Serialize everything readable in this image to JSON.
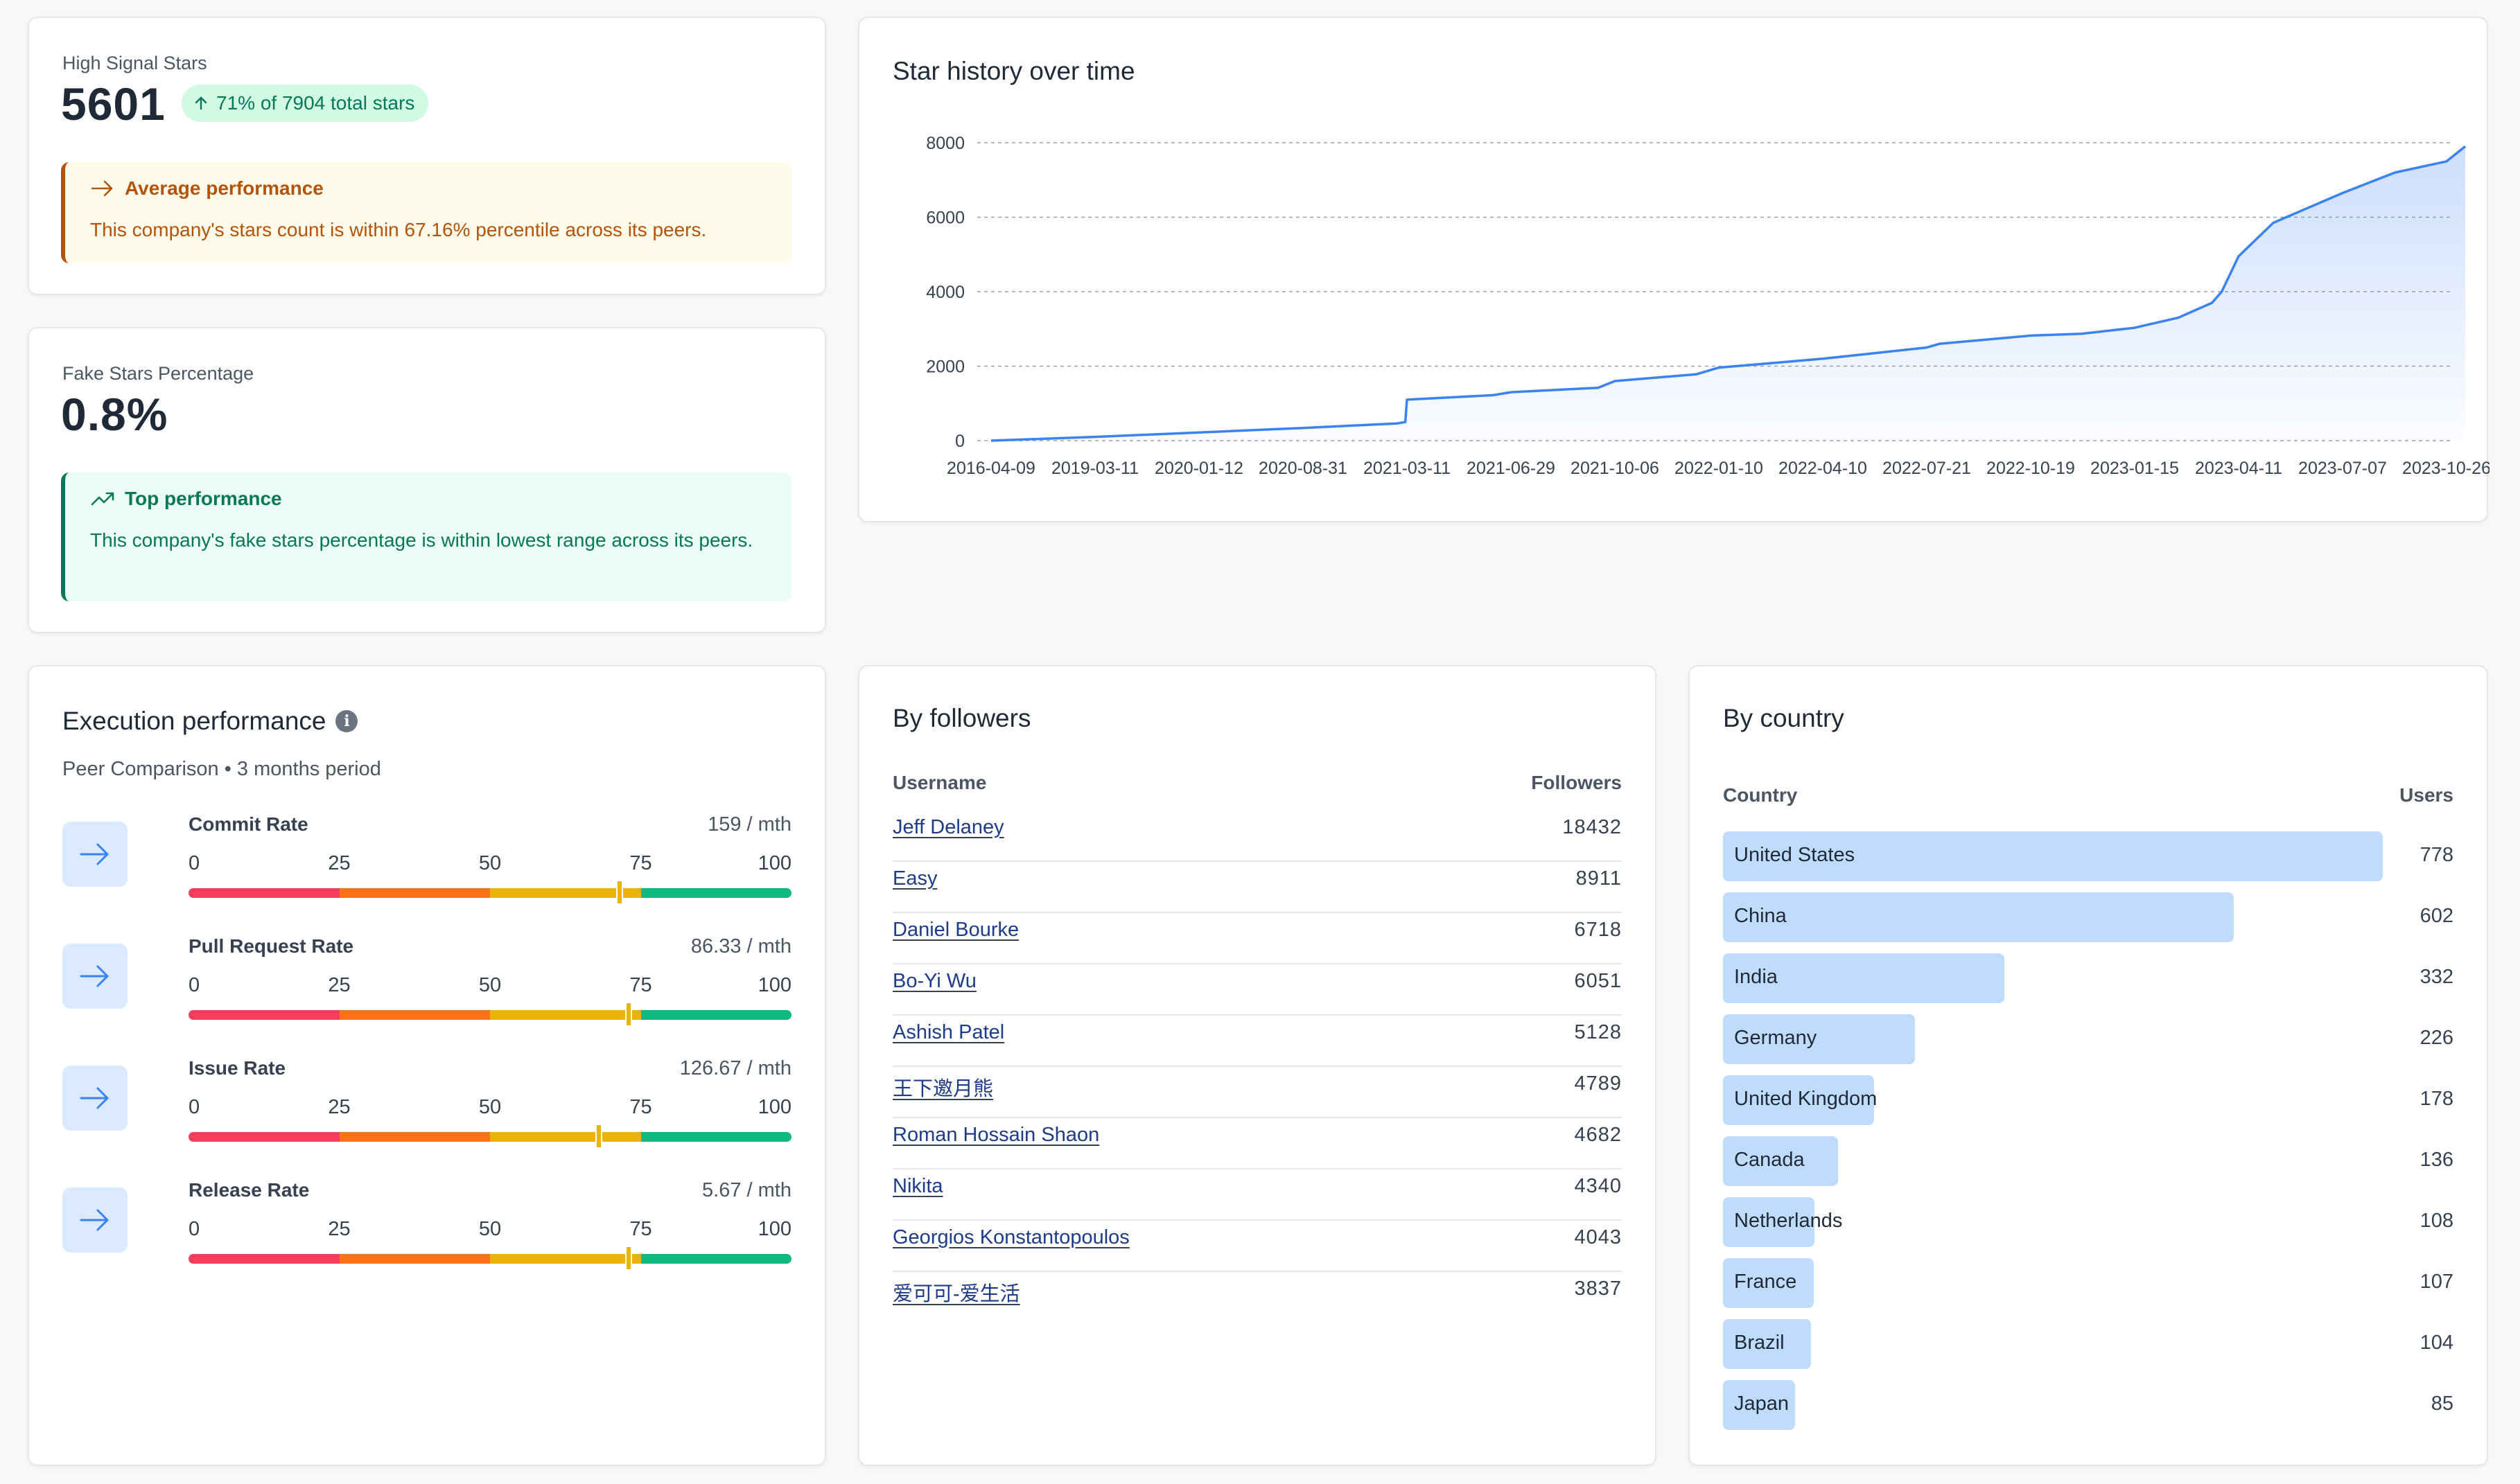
{
  "high_signal": {
    "label": "High Signal Stars",
    "value": "5601",
    "badge": "71% of 7904 total stars",
    "callout_title": "Average performance",
    "callout_text": "This company's stars count is within 67.16% percentile across its peers."
  },
  "fake_stars": {
    "label": "Fake Stars Percentage",
    "value": "0.8%",
    "callout_title": "Top performance",
    "callout_text": "This company's fake stars percentage is within lowest range across its peers."
  },
  "star_history": {
    "title": "Star history over time"
  },
  "chart_data": {
    "type": "area",
    "title": "Star history over time",
    "xlabel": "",
    "ylabel": "",
    "ylim": [
      0,
      8000
    ],
    "yticks": [
      0,
      2000,
      4000,
      6000,
      8000
    ],
    "xtick_labels": [
      "2016-04-09",
      "2019-03-11",
      "2020-01-12",
      "2020-08-31",
      "2021-03-11",
      "2021-06-29",
      "2021-10-06",
      "2022-01-10",
      "2022-04-10",
      "2022-07-21",
      "2022-10-19",
      "2023-01-15",
      "2023-04-11",
      "2023-07-07",
      "2023-10-26"
    ],
    "grid": true,
    "series": [
      {
        "x": [
          "2016-04-09",
          "2019-03-11",
          "2020-01-12",
          "2020-08-31",
          "2021-02-20",
          "2021-03-08",
          "2021-03-11",
          "2021-06-10",
          "2021-06-29",
          "2021-09-20",
          "2021-10-06",
          "2021-12-20",
          "2022-01-10",
          "2022-04-10",
          "2022-07-21",
          "2022-08-01",
          "2022-10-19",
          "2022-12-01",
          "2023-01-15",
          "2023-02-20",
          "2023-03-20",
          "2023-03-28",
          "2023-04-11",
          "2023-05-10",
          "2023-07-07",
          "2023-09-01",
          "2023-10-26",
          "2023-11-15"
        ],
        "y": [
          0,
          100,
          220,
          340,
          460,
          500,
          1100,
          1220,
          1300,
          1420,
          1600,
          1780,
          1960,
          2200,
          2500,
          2600,
          2820,
          2870,
          3030,
          3300,
          3700,
          4000,
          4950,
          5850,
          6650,
          7200,
          7500,
          7904
        ]
      }
    ]
  },
  "execution": {
    "title": "Execution performance",
    "subtitle": "Peer Comparison • 3 months period",
    "scale_labels": [
      "0",
      "25",
      "50",
      "75",
      "100"
    ],
    "band_colors": [
      "#f43f5e",
      "#f97316",
      "#eab308",
      "#10b981"
    ],
    "metrics": [
      {
        "name": "Commit Rate",
        "value": "159 / mth",
        "percentile": 71.5
      },
      {
        "name": "Pull Request Rate",
        "value": "86.33 / mth",
        "percentile": 73
      },
      {
        "name": "Issue Rate",
        "value": "126.67 / mth",
        "percentile": 68
      },
      {
        "name": "Release Rate",
        "value": "5.67 / mth",
        "percentile": 73
      }
    ]
  },
  "followers": {
    "title": "By followers",
    "col_user": "Username",
    "col_followers": "Followers",
    "rows": [
      {
        "user": "Jeff Delaney",
        "count": "18432"
      },
      {
        "user": "Easy",
        "count": "8911"
      },
      {
        "user": "Daniel Bourke",
        "count": "6718"
      },
      {
        "user": "Bo-Yi Wu",
        "count": "6051"
      },
      {
        "user": "Ashish Patel",
        "count": "5128"
      },
      {
        "user": "王下邀月熊",
        "count": "4789"
      },
      {
        "user": "Roman Hossain Shaon",
        "count": "4682"
      },
      {
        "user": "Nikita",
        "count": "4340"
      },
      {
        "user": "Georgios Konstantopoulos",
        "count": "4043"
      },
      {
        "user": "爱可可-爱生活",
        "count": "3837"
      }
    ]
  },
  "country": {
    "title": "By country",
    "col_country": "Country",
    "col_users": "Users",
    "rows": [
      {
        "name": "United States",
        "users": 778
      },
      {
        "name": "China",
        "users": 602
      },
      {
        "name": "India",
        "users": 332
      },
      {
        "name": "Germany",
        "users": 226
      },
      {
        "name": "United Kingdom",
        "users": 178
      },
      {
        "name": "Canada",
        "users": 136
      },
      {
        "name": "Netherlands",
        "users": 108
      },
      {
        "name": "France",
        "users": 107
      },
      {
        "name": "Brazil",
        "users": 104
      },
      {
        "name": "Japan",
        "users": 85
      }
    ]
  },
  "colors": {
    "accent": "#3b82f6",
    "bar_fill": "#bfdbfe",
    "warn": "#b45309",
    "good": "#047857"
  }
}
